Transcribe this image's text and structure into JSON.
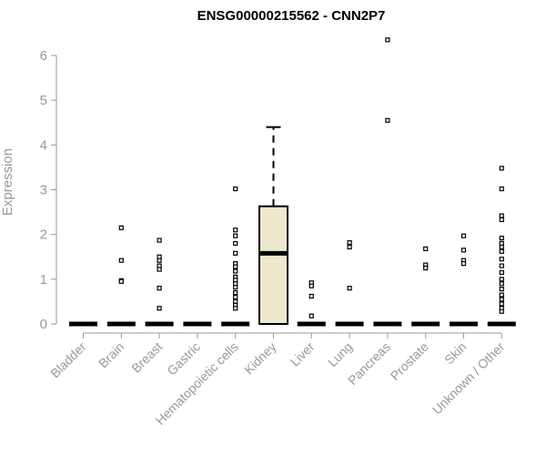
{
  "chart_data": {
    "type": "boxplot",
    "title": "ENSG00000215562 - CNN2P7",
    "xlabel": "",
    "ylabel": "Expression",
    "ylim": [
      0,
      6.4
    ],
    "yticks": [
      0,
      1,
      2,
      3,
      4,
      5,
      6
    ],
    "grid": false,
    "box_fill": "#EEE8CF",
    "categories": [
      "Bladder",
      "Brain",
      "Breast",
      "Gastric",
      "Hematopoietic cells",
      "Kidney",
      "Liver",
      "Lung",
      "Pancreas",
      "Prostate",
      "Skin",
      "Unknown / Other"
    ],
    "boxes": [
      {
        "q1": 0,
        "median": 0,
        "q3": 0,
        "whisker_low": 0,
        "whisker_high": 0,
        "outliers": []
      },
      {
        "q1": 0,
        "median": 0,
        "q3": 0,
        "whisker_low": 0,
        "whisker_high": 0,
        "outliers": [
          2.15,
          1.42,
          0.97,
          0.95
        ]
      },
      {
        "q1": 0,
        "median": 0,
        "q3": 0,
        "whisker_low": 0,
        "whisker_high": 0,
        "outliers": [
          1.87,
          1.5,
          1.42,
          1.3,
          1.22,
          0.8,
          0.35
        ]
      },
      {
        "q1": 0,
        "median": 0,
        "q3": 0,
        "whisker_low": 0,
        "whisker_high": 0,
        "outliers": []
      },
      {
        "q1": 0,
        "median": 0,
        "q3": 0,
        "whisker_low": 0,
        "whisker_high": 0,
        "outliers": [
          3.02,
          2.1,
          1.97,
          1.8,
          1.58,
          1.35,
          1.28,
          1.18,
          1.05,
          0.98,
          0.9,
          0.82,
          0.7,
          0.6,
          0.5,
          0.42,
          0.35
        ]
      },
      {
        "q1": 0,
        "median": 1.58,
        "q3": 2.63,
        "whisker_low": 0,
        "whisker_high": 4.4,
        "outliers": []
      },
      {
        "q1": 0,
        "median": 0,
        "q3": 0,
        "whisker_low": 0,
        "whisker_high": 0,
        "outliers": [
          0.92,
          0.85,
          0.62,
          0.18
        ]
      },
      {
        "q1": 0,
        "median": 0,
        "q3": 0,
        "whisker_low": 0,
        "whisker_high": 0,
        "outliers": [
          1.82,
          1.72,
          0.8
        ]
      },
      {
        "q1": 0,
        "median": 0,
        "q3": 0,
        "whisker_low": 0,
        "whisker_high": 0,
        "outliers": [
          6.35,
          4.55
        ]
      },
      {
        "q1": 0,
        "median": 0,
        "q3": 0,
        "whisker_low": 0,
        "whisker_high": 0,
        "outliers": [
          1.68,
          1.32,
          1.25
        ]
      },
      {
        "q1": 0,
        "median": 0,
        "q3": 0,
        "whisker_low": 0,
        "whisker_high": 0,
        "outliers": [
          1.97,
          1.65,
          1.42,
          1.35
        ]
      },
      {
        "q1": 0,
        "median": 0,
        "q3": 0,
        "whisker_low": 0,
        "whisker_high": 0,
        "outliers": [
          3.48,
          3.02,
          2.42,
          2.33,
          1.92,
          1.8,
          1.72,
          1.62,
          1.45,
          1.3,
          1.15,
          1.0,
          0.9,
          0.78,
          0.65,
          0.55,
          0.45,
          0.35,
          0.28
        ]
      }
    ]
  }
}
